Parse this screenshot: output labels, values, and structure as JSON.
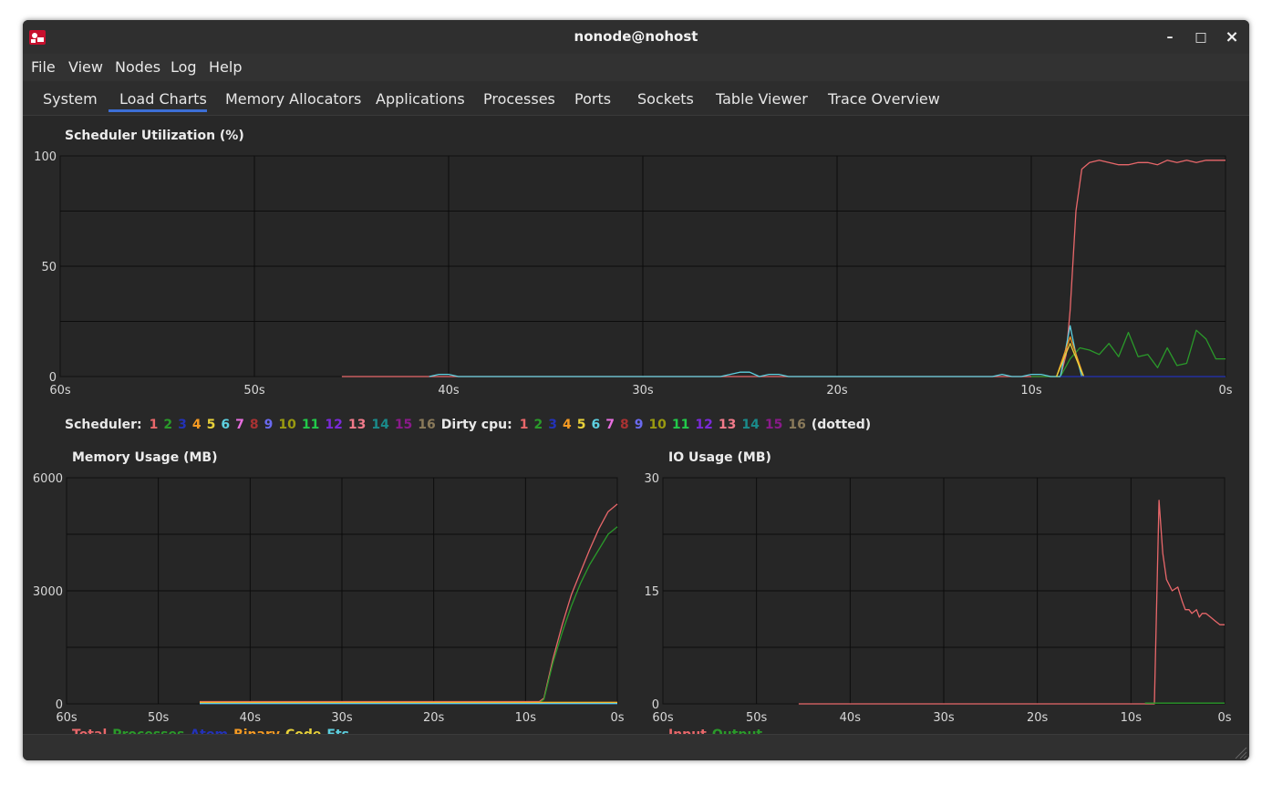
{
  "window": {
    "title": "nonode@nohost"
  },
  "window_controls": {
    "minimize": "–",
    "maximize": "□",
    "close": "×"
  },
  "menu": [
    "File",
    "View",
    "Nodes",
    "Log",
    "Help"
  ],
  "tabs": [
    "System",
    "Load Charts",
    "Memory Allocators",
    "Applications",
    "Processes",
    "Ports",
    "Sockets",
    "Table Viewer",
    "Trace Overview"
  ],
  "active_tab": "Load Charts",
  "colors": {
    "accent": "#3c6fd6",
    "total": "#e8676a",
    "processes": "#2a9a2a",
    "atom": "#2332b8",
    "binary": "#f59a23",
    "code": "#e8d13a",
    "ets": "#5dd0e0",
    "input": "#e8676a",
    "output": "#2a9a2a"
  },
  "scheduler_legend": {
    "scheduler_label": "Scheduler:",
    "dirty_label": "Dirty cpu:",
    "suffix": "(dotted)",
    "items": [
      {
        "n": "1",
        "c": "#e8676a"
      },
      {
        "n": "2",
        "c": "#2a9a2a"
      },
      {
        "n": "3",
        "c": "#2332b8"
      },
      {
        "n": "4",
        "c": "#f59a23"
      },
      {
        "n": "5",
        "c": "#e8d13a"
      },
      {
        "n": "6",
        "c": "#5dd0e0"
      },
      {
        "n": "7",
        "c": "#e86ee0"
      },
      {
        "n": "8",
        "c": "#a83232"
      },
      {
        "n": "9",
        "c": "#6a6af0"
      },
      {
        "n": "10",
        "c": "#9a9a10"
      },
      {
        "n": "11",
        "c": "#22c84a"
      },
      {
        "n": "12",
        "c": "#7a2ad8"
      },
      {
        "n": "13",
        "c": "#f07a8a"
      },
      {
        "n": "14",
        "c": "#1a8a8a"
      },
      {
        "n": "15",
        "c": "#8a1a8a"
      },
      {
        "n": "16",
        "c": "#8a7a5a"
      }
    ]
  },
  "memory_legend": [
    "Total",
    "Processes",
    "Atom",
    "Binary",
    "Code",
    "Ets"
  ],
  "io_legend": [
    "Input",
    "Output"
  ],
  "chart_data": [
    {
      "type": "line",
      "title": "Scheduler Utilization (%)",
      "xlabel": "",
      "ylabel": "",
      "xlim": [
        60,
        0
      ],
      "ylim": [
        0,
        100
      ],
      "x_ticks": [
        "60s",
        "50s",
        "40s",
        "30s",
        "20s",
        "10s",
        "0s"
      ],
      "y_ticks": [
        "0",
        "50",
        "100"
      ],
      "grid": true,
      "series": [
        {
          "color": "#e8676a",
          "x": [
            45.5,
            10,
            8.5,
            8.2,
            8.0,
            7.7,
            7.4,
            7.0,
            6.5,
            6.0,
            5.5,
            5.0,
            4.5,
            4.0,
            3.5,
            3.0,
            2.5,
            2.0,
            1.5,
            1.0,
            0.5,
            0
          ],
          "y": [
            0,
            0,
            0,
            10,
            30,
            75,
            94,
            97,
            98,
            97,
            96,
            96,
            97,
            97,
            96,
            98,
            97,
            98,
            97,
            98,
            98,
            98
          ]
        },
        {
          "color": "#2a9a2a",
          "x": [
            10,
            8.5,
            8.0,
            7.5,
            7.0,
            6.5,
            6.0,
            5.5,
            5.0,
            4.5,
            4.0,
            3.5,
            3.0,
            2.5,
            2.0,
            1.5,
            1.0,
            0.5,
            0
          ],
          "y": [
            0,
            0,
            8,
            13,
            12,
            10,
            15,
            9,
            20,
            9,
            10,
            4,
            13,
            5,
            6,
            21,
            17,
            8,
            8
          ]
        },
        {
          "color": "#5dd0e0",
          "x": [
            41,
            40.5,
            40,
            39.5,
            26,
            25,
            24.5,
            24,
            23.5,
            23,
            22.5,
            12,
            11.5,
            11,
            10.5,
            10,
            9.5,
            9,
            8.5,
            8.0,
            7.7,
            7.4
          ],
          "y": [
            0,
            1,
            1,
            0,
            0,
            2,
            2,
            0,
            1,
            1,
            0,
            0,
            1,
            0,
            0,
            1,
            1,
            0,
            0,
            23,
            10,
            0
          ]
        },
        {
          "color": "#f59a23",
          "x": [
            8.7,
            8.0,
            7.5,
            7.3
          ],
          "y": [
            0,
            18,
            5,
            0
          ]
        },
        {
          "color": "#e8d13a",
          "x": [
            8.7,
            8.0,
            7.5,
            7.3
          ],
          "y": [
            0,
            15,
            4,
            0
          ]
        },
        {
          "color": "#2332b8",
          "x": [
            8.5,
            0
          ],
          "y": [
            0,
            0
          ]
        }
      ]
    },
    {
      "type": "line",
      "title": "Memory Usage (MB)",
      "xlabel": "",
      "ylabel": "",
      "xlim": [
        60,
        0
      ],
      "ylim": [
        0,
        6000
      ],
      "x_ticks": [
        "60s",
        "50s",
        "40s",
        "30s",
        "20s",
        "10s",
        "0s"
      ],
      "y_ticks": [
        "0",
        "3000",
        "6000"
      ],
      "grid": true,
      "series": [
        {
          "name": "Total",
          "color": "#e8676a",
          "x": [
            45.5,
            8.5,
            8,
            7,
            6,
            5,
            4,
            3,
            2,
            1,
            0
          ],
          "y": [
            60,
            60,
            150,
            1200,
            2100,
            2900,
            3500,
            4100,
            4650,
            5100,
            5300
          ]
        },
        {
          "name": "Processes",
          "color": "#2a9a2a",
          "x": [
            45.5,
            8.5,
            8,
            7,
            6,
            5,
            4,
            3,
            2,
            1,
            0
          ],
          "y": [
            30,
            30,
            120,
            1100,
            1900,
            2600,
            3200,
            3700,
            4100,
            4500,
            4700
          ]
        },
        {
          "name": "Atom",
          "color": "#2332b8",
          "x": [
            45.5,
            0
          ],
          "y": [
            2,
            2
          ]
        },
        {
          "name": "Binary",
          "color": "#f59a23",
          "x": [
            45.5,
            8.5,
            0
          ],
          "y": [
            40,
            40,
            40
          ]
        },
        {
          "name": "Code",
          "color": "#e8d13a",
          "x": [
            45.5,
            0
          ],
          "y": [
            20,
            20
          ]
        },
        {
          "name": "Ets",
          "color": "#5dd0e0",
          "x": [
            45.5,
            0
          ],
          "y": [
            10,
            10
          ]
        }
      ]
    },
    {
      "type": "line",
      "title": "IO Usage (MB)",
      "xlabel": "",
      "ylabel": "",
      "xlim": [
        60,
        0
      ],
      "ylim": [
        0,
        30
      ],
      "x_ticks": [
        "60s",
        "50s",
        "40s",
        "30s",
        "20s",
        "10s",
        "0s"
      ],
      "y_ticks": [
        "0",
        "15",
        "30"
      ],
      "grid": true,
      "series": [
        {
          "name": "Input",
          "color": "#e8676a",
          "x": [
            45.5,
            8.5,
            7.5,
            7.0,
            6.6,
            6.2,
            5.6,
            5.0,
            4.5,
            4.2,
            3.8,
            3.5,
            3.0,
            2.7,
            2.4,
            2.0,
            1.5,
            1.0,
            0.5,
            0
          ],
          "y": [
            0,
            0,
            0,
            27,
            20,
            16.5,
            15,
            15.5,
            13.5,
            12.5,
            12.5,
            12.0,
            12.5,
            11.5,
            12.0,
            12.0,
            11.5,
            11.0,
            10.5,
            10.5
          ]
        },
        {
          "name": "Output",
          "color": "#2a9a2a",
          "x": [
            8.5,
            0
          ],
          "y": [
            0.1,
            0.1
          ]
        }
      ]
    }
  ]
}
